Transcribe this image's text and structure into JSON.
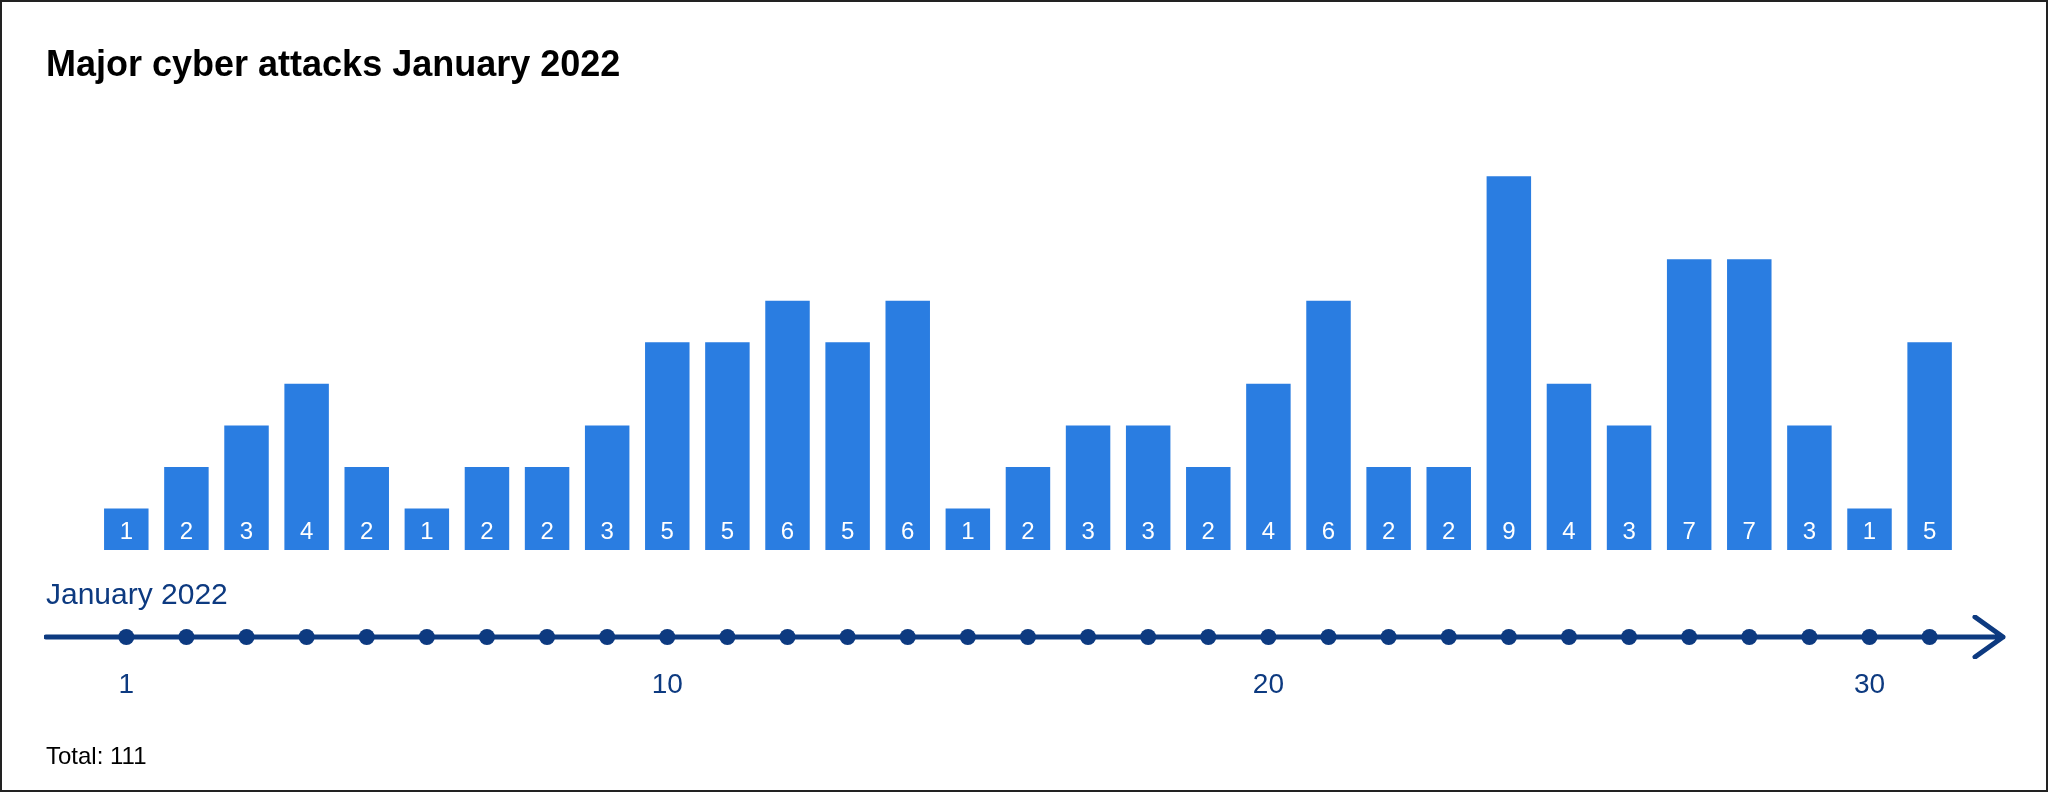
{
  "chart_data": {
    "type": "bar",
    "title": "Major cyber attacks January 2022",
    "xlabel": "January 2022",
    "categories": [
      "1",
      null,
      null,
      null,
      null,
      null,
      null,
      null,
      null,
      "10",
      null,
      null,
      null,
      null,
      null,
      null,
      null,
      null,
      null,
      "20",
      null,
      null,
      null,
      null,
      null,
      null,
      null,
      null,
      null,
      "30",
      null
    ],
    "values": [
      1,
      2,
      3,
      4,
      2,
      1,
      2,
      2,
      3,
      5,
      5,
      6,
      5,
      6,
      1,
      2,
      3,
      3,
      2,
      4,
      6,
      2,
      2,
      9,
      4,
      3,
      7,
      7,
      3,
      1,
      5
    ],
    "color": "#2a7de1",
    "data_labels": true,
    "grid": false,
    "legend": false,
    "tick_labels": "x",
    "annotations": [
      "Total: 111"
    ]
  }
}
